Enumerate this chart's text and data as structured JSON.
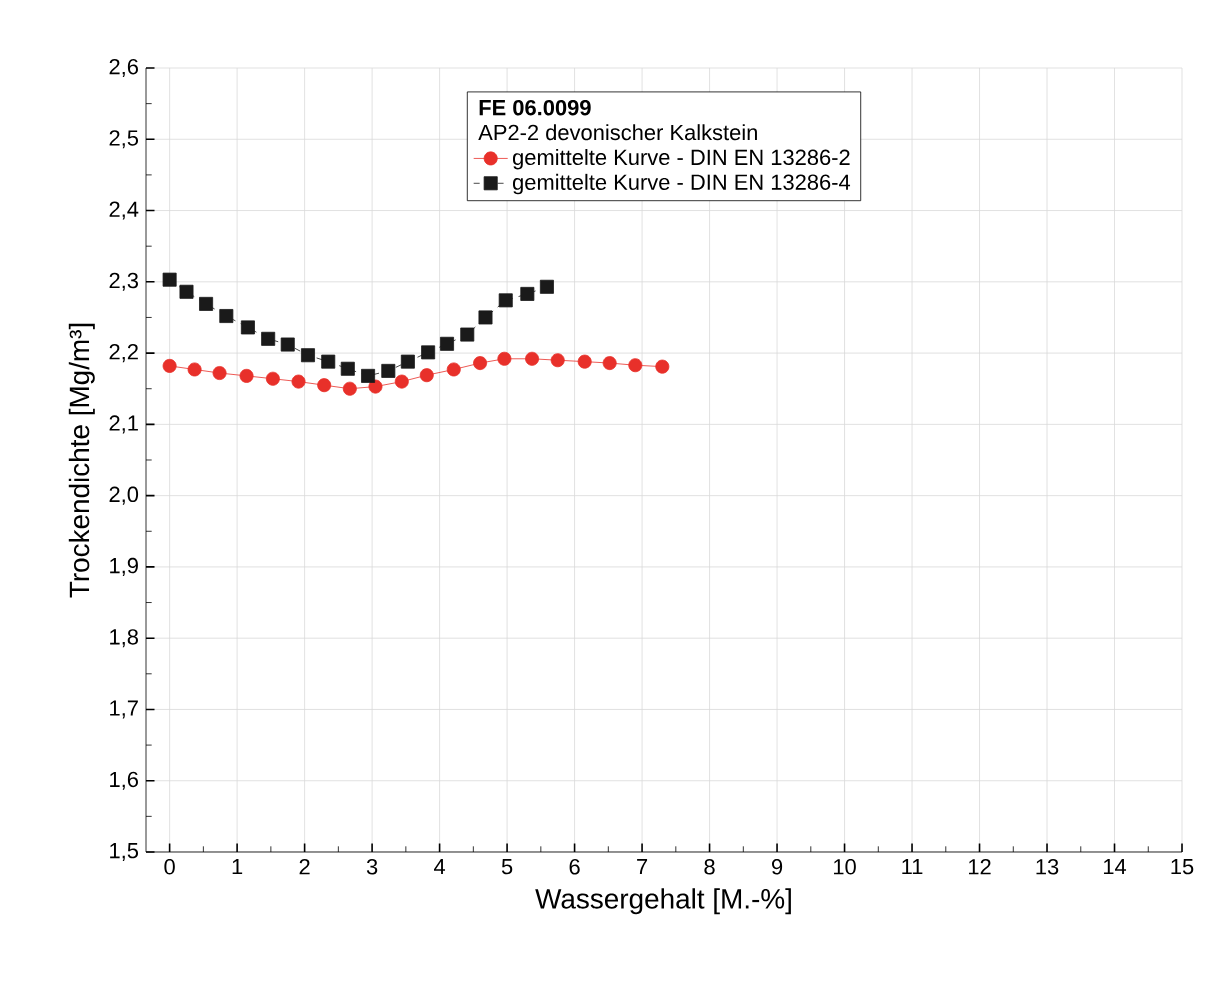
{
  "chart_data": {
    "type": "line",
    "xlabel": "Wassergehalt [M.-%]",
    "ylabel": "Trockendichte [Mg/m³]",
    "legend_title": "FE 06.0099",
    "annotations": [
      "AP2-2 devonischer Kalkstein"
    ],
    "xlim": [
      -0.35,
      15
    ],
    "ylim": [
      1.5,
      2.6
    ],
    "xticks": [
      0,
      1,
      2,
      3,
      4,
      5,
      6,
      7,
      8,
      9,
      10,
      11,
      12,
      13,
      14,
      15
    ],
    "yticks": [
      {
        "value": 1.5,
        "label": "1,5"
      },
      {
        "value": 1.6,
        "label": "1,6"
      },
      {
        "value": 1.7,
        "label": "1,7"
      },
      {
        "value": 1.8,
        "label": "1,8"
      },
      {
        "value": 1.9,
        "label": "1,9"
      },
      {
        "value": 2.0,
        "label": "2,0"
      },
      {
        "value": 2.1,
        "label": "2,1"
      },
      {
        "value": 2.2,
        "label": "2,2"
      },
      {
        "value": 2.3,
        "label": "2,3"
      },
      {
        "value": 2.4,
        "label": "2,4"
      },
      {
        "value": 2.5,
        "label": "2,5"
      },
      {
        "value": 2.6,
        "label": "2,6"
      }
    ],
    "grid": true,
    "legend": "top",
    "series": [
      {
        "name": "gemittelte Kurve - DIN EN 13286-2",
        "color": "#e8302a",
        "marker": "circle",
        "line_style": "solid",
        "x": [
          0.0,
          0.37,
          0.74,
          1.14,
          1.53,
          1.91,
          2.29,
          2.67,
          3.05,
          3.44,
          3.81,
          4.21,
          4.6,
          4.96,
          5.37,
          5.75,
          6.15,
          6.52,
          6.9,
          7.3
        ],
        "values": [
          2.182,
          2.177,
          2.172,
          2.168,
          2.164,
          2.16,
          2.155,
          2.15,
          2.153,
          2.16,
          2.169,
          2.177,
          2.186,
          2.192,
          2.192,
          2.19,
          2.188,
          2.186,
          2.183,
          2.181
        ]
      },
      {
        "name": "gemittelte Kurve - DIN EN 13286-4",
        "color": "#1a1a1a",
        "marker": "square",
        "line_style": "dashed",
        "x": [
          0.0,
          0.25,
          0.54,
          0.84,
          1.16,
          1.46,
          1.75,
          2.05,
          2.35,
          2.64,
          2.94,
          3.24,
          3.53,
          3.83,
          4.11,
          4.41,
          4.68,
          4.98,
          5.3,
          5.59
        ],
        "values": [
          2.303,
          2.286,
          2.269,
          2.252,
          2.236,
          2.22,
          2.212,
          2.197,
          2.188,
          2.178,
          2.168,
          2.175,
          2.188,
          2.201,
          2.213,
          2.226,
          2.25,
          2.274,
          2.283,
          2.293
        ]
      }
    ]
  }
}
